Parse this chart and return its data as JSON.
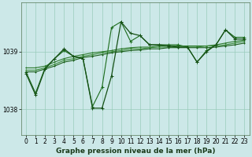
{
  "background_color": "#cce8e8",
  "plot_bg_color": "#cce8e8",
  "grid_color": "#99ccbb",
  "xlabel": "Graphe pression niveau de la mer (hPa)",
  "ylim": [
    1037.55,
    1039.85
  ],
  "xlim": [
    -0.5,
    23.5
  ],
  "yticks": [
    1038,
    1039
  ],
  "xticks": [
    0,
    1,
    2,
    3,
    4,
    5,
    6,
    7,
    8,
    9,
    10,
    11,
    12,
    13,
    14,
    15,
    16,
    17,
    18,
    19,
    20,
    21,
    22,
    23
  ],
  "series": [
    {
      "x": [
        0,
        1,
        2,
        3,
        4,
        5,
        6,
        7,
        8,
        9,
        10,
        11,
        12,
        13,
        14,
        15,
        16,
        17,
        18,
        19,
        20,
        21,
        22,
        23
      ],
      "y": [
        1038.65,
        1038.28,
        1038.72,
        1038.88,
        1039.02,
        1038.92,
        1038.88,
        1038.05,
        1038.38,
        1039.42,
        1039.52,
        1039.18,
        1039.28,
        1039.12,
        1039.12,
        1039.12,
        1039.12,
        1039.08,
        1038.82,
        1039.02,
        1039.12,
        1039.38,
        1039.25,
        1039.25
      ],
      "color": "#1a6b1a",
      "lw": 0.8,
      "marker": "+",
      "ms": 3
    },
    {
      "x": [
        0,
        1,
        2,
        3,
        4,
        5,
        6,
        7,
        8,
        9,
        10,
        11,
        12,
        13,
        14,
        15,
        16,
        17,
        18,
        19,
        20,
        21,
        22,
        23
      ],
      "y": [
        1038.72,
        1038.72,
        1038.75,
        1038.82,
        1038.88,
        1038.92,
        1038.95,
        1038.98,
        1039.0,
        1039.02,
        1039.05,
        1039.07,
        1039.08,
        1039.08,
        1039.1,
        1039.1,
        1039.1,
        1039.1,
        1039.1,
        1039.1,
        1039.12,
        1039.15,
        1039.18,
        1039.2
      ],
      "color": "#2d7a2d",
      "lw": 0.8,
      "marker": "+",
      "ms": 2
    },
    {
      "x": [
        0,
        1,
        2,
        3,
        4,
        5,
        6,
        7,
        8,
        9,
        10,
        11,
        12,
        13,
        14,
        15,
        16,
        17,
        18,
        19,
        20,
        21,
        22,
        23
      ],
      "y": [
        1038.68,
        1038.68,
        1038.72,
        1038.78,
        1038.85,
        1038.88,
        1038.92,
        1038.95,
        1038.98,
        1039.0,
        1039.02,
        1039.05,
        1039.05,
        1039.07,
        1039.08,
        1039.08,
        1039.08,
        1039.08,
        1039.08,
        1039.1,
        1039.1,
        1039.12,
        1039.15,
        1039.18
      ],
      "color": "#3a8a3a",
      "lw": 0.8,
      "marker": "+",
      "ms": 2
    },
    {
      "x": [
        0,
        1,
        2,
        3,
        4,
        5,
        6,
        7,
        8,
        9,
        10,
        11,
        12,
        13,
        14,
        15,
        16,
        17,
        18,
        19,
        20,
        21,
        22,
        23
      ],
      "y": [
        1038.65,
        1038.65,
        1038.7,
        1038.75,
        1038.82,
        1038.85,
        1038.9,
        1038.92,
        1038.95,
        1038.98,
        1039.0,
        1039.02,
        1039.03,
        1039.05,
        1039.05,
        1039.07,
        1039.07,
        1039.07,
        1039.07,
        1039.07,
        1039.08,
        1039.1,
        1039.12,
        1039.15
      ],
      "color": "#1a5e1a",
      "lw": 0.8,
      "marker": "+",
      "ms": 2
    },
    {
      "x": [
        0,
        1,
        2,
        3,
        4,
        5,
        6,
        7,
        8,
        9,
        10,
        11,
        12,
        13,
        14,
        15,
        16,
        17,
        18,
        19,
        20,
        21,
        22,
        23
      ],
      "y": [
        1038.62,
        1038.25,
        1038.7,
        1038.88,
        1039.05,
        1038.92,
        1038.88,
        1038.02,
        1038.02,
        1038.58,
        1039.52,
        1039.32,
        1039.28,
        1039.12,
        1039.12,
        1039.1,
        1039.08,
        1039.08,
        1038.82,
        1039.0,
        1039.12,
        1039.38,
        1039.22,
        1039.22
      ],
      "color": "#155015",
      "lw": 0.9,
      "marker": "+",
      "ms": 3
    }
  ],
  "tick_fontsize": 5.5,
  "xlabel_fontsize": 6.5,
  "spine_color": "#557755"
}
